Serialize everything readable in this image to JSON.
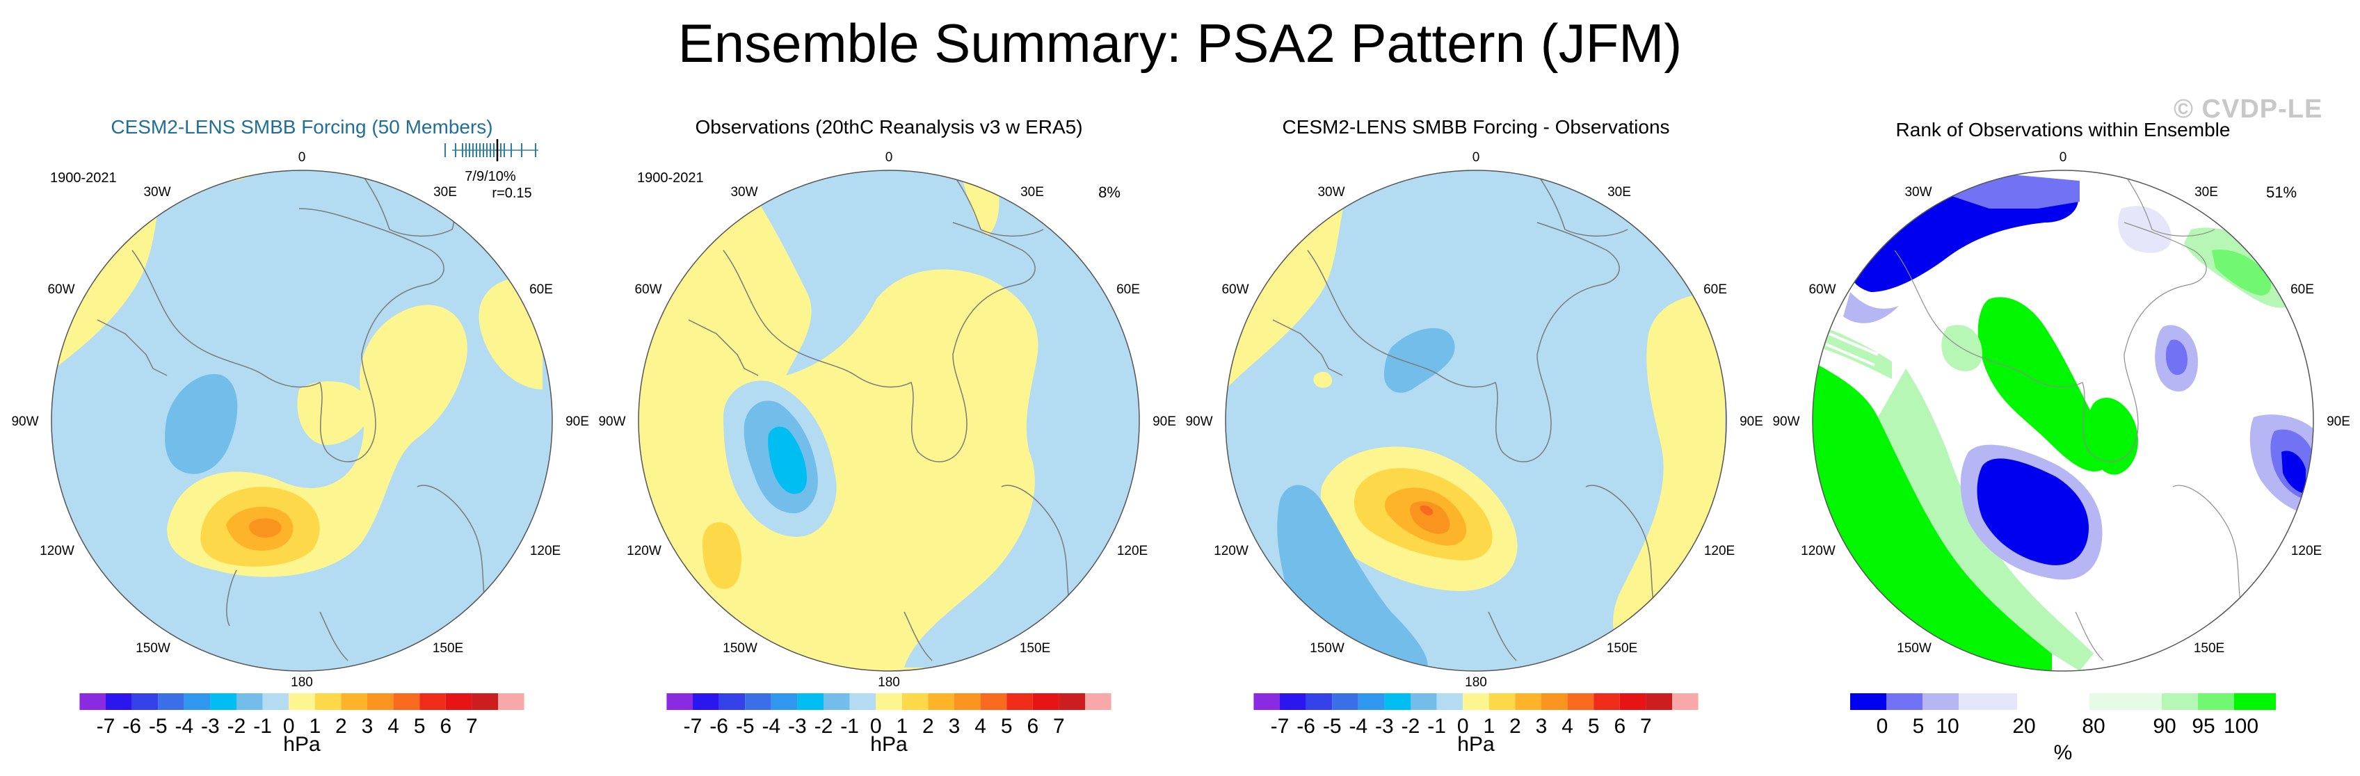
{
  "page_title": "Ensemble Summary: PSA2 Pattern (JFM)",
  "watermark": "© CVDP-LE",
  "lon_labels": {
    "top": "0",
    "bottom": "180",
    "l30": "30W",
    "r30": "30E",
    "l60": "60W",
    "r60": "60E",
    "l90": "90W",
    "r90": "90E",
    "l120": "120W",
    "r120": "120E",
    "l150": "150W",
    "r150": "150E"
  },
  "colors": {
    "title_teal": "#1f6f9a",
    "accent_teal": "#2c7ea6",
    "land_outline": "#7a7a7a"
  },
  "chart_data": [
    {
      "type": "contour-map",
      "title": "CESM2-LENS SMBB Forcing (50 Members)",
      "period": "1900-2021",
      "stat_text": "7/9/10%",
      "corr_text": "r=0.15",
      "spread_marks": [
        -0.6,
        -0.45,
        -0.35,
        -0.3,
        -0.25,
        -0.2,
        -0.15,
        -0.1,
        -0.05,
        0,
        0.05,
        0.1,
        0.15,
        0.2,
        0.25,
        0.35,
        0.5,
        0.7
      ],
      "colorbar_labels": [
        "-7",
        "-6",
        "-5",
        "-4",
        "-3",
        "-2",
        "-1",
        "0",
        "1",
        "2",
        "3",
        "4",
        "5",
        "6",
        "7"
      ],
      "units": "hPa"
    },
    {
      "type": "contour-map",
      "title": "Observations (20thC Reanalysis v3 w ERA5)",
      "period": "1900-2021",
      "pct_text": "8%",
      "colorbar_labels": [
        "-7",
        "-6",
        "-5",
        "-4",
        "-3",
        "-2",
        "-1",
        "0",
        "1",
        "2",
        "3",
        "4",
        "5",
        "6",
        "7"
      ],
      "units": "hPa"
    },
    {
      "type": "contour-map",
      "title": "CESM2-LENS SMBB Forcing - Observations",
      "colorbar_labels": [
        "-7",
        "-6",
        "-5",
        "-4",
        "-3",
        "-2",
        "-1",
        "0",
        "1",
        "2",
        "3",
        "4",
        "5",
        "6",
        "7"
      ],
      "units": "hPa"
    },
    {
      "type": "rank-map",
      "title": "Rank of Observations within Ensemble",
      "pct_text": "51%",
      "colorbar_labels": [
        "0",
        "5",
        "10",
        "20",
        "80",
        "90",
        "95",
        "100"
      ],
      "units": "%"
    }
  ]
}
